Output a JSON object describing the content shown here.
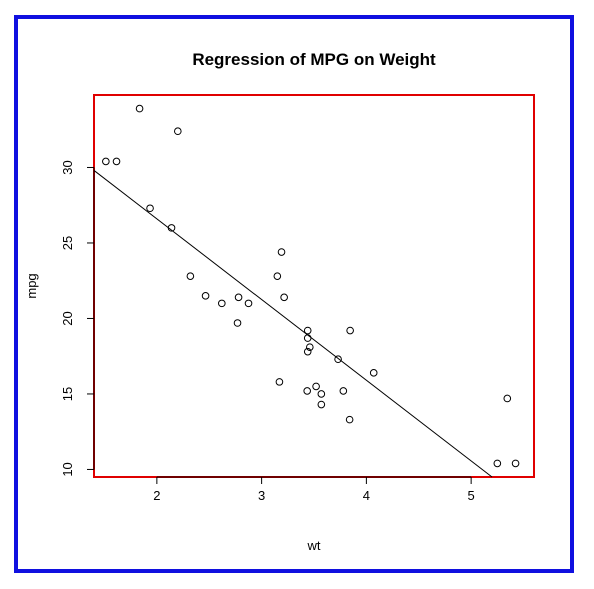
{
  "chart_data": {
    "type": "scatter",
    "title": "Regression of MPG on Weight",
    "xlabel": "wt",
    "ylabel": "mpg",
    "xlim": [
      1.4,
      5.6
    ],
    "ylim": [
      9.5,
      34.8
    ],
    "xticks": [
      "2",
      "3",
      "4",
      "5"
    ],
    "yticks": [
      "10",
      "15",
      "20",
      "25",
      "30"
    ],
    "grid": false,
    "plot_border_color": "#e00000",
    "frame_border_color": "#1010e0",
    "points": {
      "x": [
        2.62,
        2.875,
        2.32,
        3.215,
        3.44,
        3.46,
        3.57,
        3.19,
        3.15,
        3.44,
        3.44,
        4.07,
        3.73,
        3.78,
        5.25,
        5.424,
        5.345,
        2.2,
        1.615,
        1.835,
        2.465,
        3.52,
        3.435,
        3.84,
        3.845,
        1.935,
        2.14,
        1.513,
        3.17,
        2.77,
        3.57,
        2.78
      ],
      "y": [
        21.0,
        21.0,
        22.8,
        21.4,
        18.7,
        18.1,
        14.3,
        24.4,
        22.8,
        19.2,
        17.8,
        16.4,
        17.3,
        15.2,
        10.4,
        10.4,
        14.7,
        32.4,
        30.4,
        33.9,
        21.5,
        15.5,
        15.2,
        13.3,
        19.2,
        27.3,
        26.0,
        30.4,
        15.8,
        19.7,
        15.0,
        21.4
      ]
    },
    "regression_line": {
      "intercept": 37.285,
      "slope": -5.344
    }
  }
}
